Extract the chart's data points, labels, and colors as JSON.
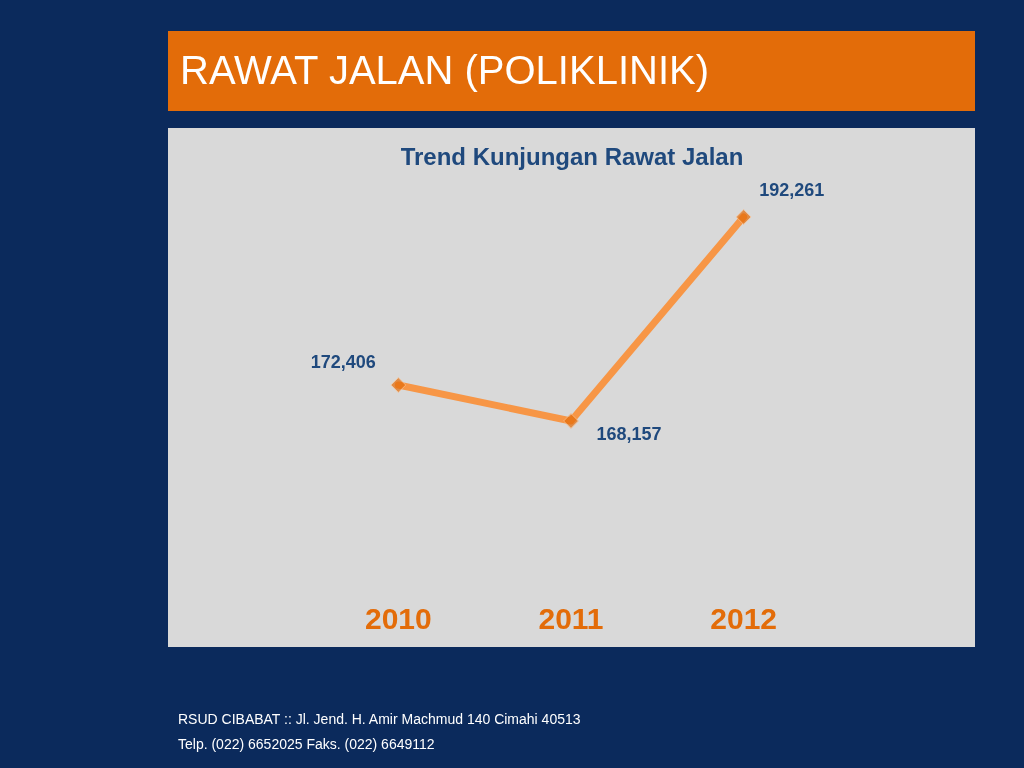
{
  "chart_data": {
    "type": "line",
    "title": "RAWAT JALAN (POLIKLINIK)",
    "subtitle": "Trend Kunjungan Rawat Jalan",
    "categories": [
      "2010",
      "2011",
      "2012"
    ],
    "series": [
      {
        "color": "#f79646",
        "values": [
          172406,
          168157,
          192261
        ],
        "value_labels": [
          "172,406",
          "168,157",
          "192,261"
        ]
      }
    ],
    "marker": "diamond",
    "line_style": "solid",
    "annotations": [
      "RSUD CIBABAT :: Jl. Jend. H. Amir Machmud 140  Cimahi 40513",
      "Telp. (022) 6652025    Faks. (022) 6649112"
    ]
  }
}
